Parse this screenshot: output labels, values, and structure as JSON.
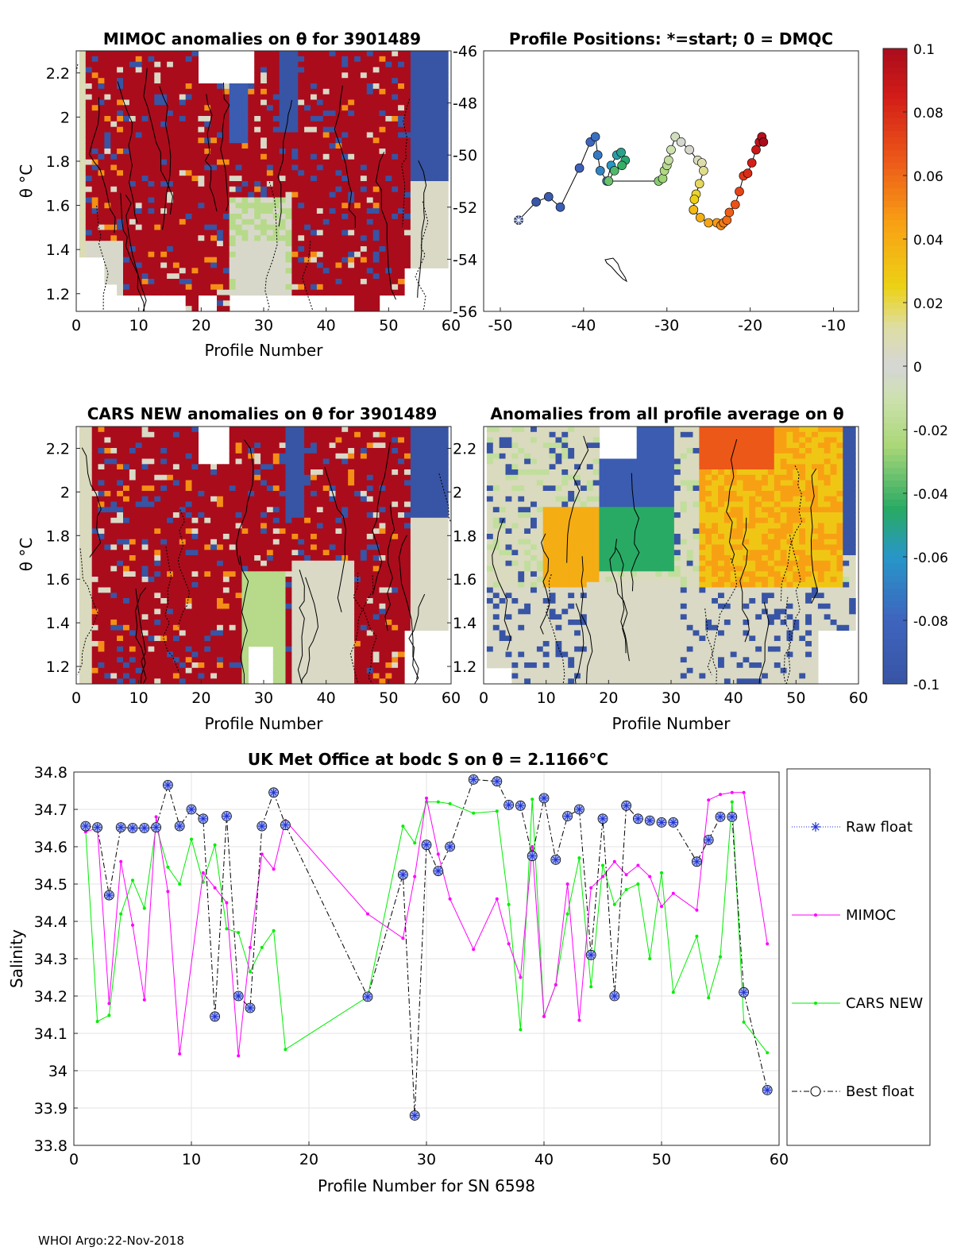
{
  "footer": "WHOI Argo:22-Nov-2018",
  "colors": {
    "raw_float": "#1f2fd6",
    "mimoc": "#ff00ff",
    "cars": "#00ee00",
    "best_float": "#000000",
    "marker_fill": "#9fb0ee"
  },
  "chart_data": [
    {
      "id": "mimoc_anomaly",
      "type": "heatmap",
      "title": "MIMOC anomalies on θ  for 3901489",
      "xlabel": "Profile Number",
      "ylabel": "θ °C",
      "xlim": [
        0,
        60
      ],
      "ylim": [
        1.12,
        2.3
      ],
      "xticks": [
        "0",
        "10",
        "20",
        "30",
        "40",
        "50",
        "60"
      ],
      "yticks": [
        "1.2",
        "1.4",
        "1.6",
        "1.8",
        "2",
        "2.2"
      ],
      "note": "Per-cell anomaly values not individually legible; dominant values approximately +0.1 (red) with ~0 (gray) and negative patches"
    },
    {
      "id": "profile_positions",
      "type": "scatter",
      "title": "Profile Positions: *=start; 0 = DMQC",
      "xlim": [
        -52,
        -7
      ],
      "ylim": [
        -56,
        -46
      ],
      "xticks": [
        "-50",
        "-40",
        "-30",
        "-20",
        "-10"
      ],
      "yticks": [
        "-46",
        "-48",
        "-50",
        "-52",
        "-54",
        "-56"
      ],
      "lon": [
        -47.8,
        -45.7,
        -44.2,
        -42.8,
        -40.5,
        -39.2,
        -38.6,
        -38.3,
        -38.0,
        -37.2,
        -36.7,
        -36.0,
        -35.5,
        -35.0,
        -35.4,
        -36.3,
        -37.0,
        -31.0,
        -30.5,
        -30.3,
        -30.0,
        -29.8,
        -29.5,
        -29.0,
        -28.3,
        -27.3,
        -26.3,
        -25.8,
        -25.6,
        -26.1,
        -26.5,
        -26.7,
        -26.8,
        -26.8,
        -26.0,
        -25.0,
        -24.0,
        -23.5,
        -23.2,
        -22.8,
        -22.5,
        -21.8,
        -21.3,
        -20.8,
        -20.3,
        -19.8,
        -19.3,
        -18.9,
        -18.6,
        -18.4
      ],
      "lat": [
        -52.5,
        -51.8,
        -51.6,
        -52.0,
        -50.5,
        -49.5,
        -49.3,
        -50.0,
        -50.6,
        -51.0,
        -50.4,
        -50.0,
        -49.9,
        -50.2,
        -50.4,
        -50.6,
        -51.0,
        -51.0,
        -50.9,
        -50.6,
        -50.4,
        -50.2,
        -49.8,
        -49.3,
        -49.5,
        -49.8,
        -50.2,
        -50.3,
        -50.6,
        -51.1,
        -51.5,
        -51.7,
        -52.1,
        -52.1,
        -52.4,
        -52.6,
        -52.6,
        -52.7,
        -52.6,
        -52.5,
        -52.2,
        -51.9,
        -51.4,
        -50.8,
        -50.7,
        -50.3,
        -49.8,
        -49.5,
        -49.3,
        -49.5
      ],
      "island_outline": "Small island near lon -36, lat -54.5"
    },
    {
      "id": "cars_anomaly",
      "type": "heatmap",
      "title": "CARS NEW anomalies on θ for 3901489",
      "xlabel": "Profile Number",
      "ylabel": "θ °C",
      "xlim": [
        0,
        60
      ],
      "ylim": [
        1.12,
        2.3
      ],
      "xticks": [
        "0",
        "10",
        "20",
        "30",
        "40",
        "50",
        "60"
      ],
      "yticks": [
        "1.2",
        "1.4",
        "1.6",
        "1.8",
        "2",
        "2.2"
      ]
    },
    {
      "id": "profile_average_anomaly",
      "type": "heatmap",
      "title": "Anomalies from all profile average on θ",
      "xlabel": "Profile Number",
      "xlim": [
        0,
        60
      ],
      "ylim": [
        1.12,
        2.3
      ],
      "xticks": [
        "0",
        "10",
        "20",
        "30",
        "40",
        "50",
        "60"
      ],
      "yticks": [
        "1.2",
        "1.4",
        "1.6",
        "1.8",
        "2",
        "2.2"
      ]
    },
    {
      "id": "colorbar",
      "type": "colorbar",
      "range": [
        -0.1,
        0.1
      ],
      "ticks": [
        "0.1",
        "0.08",
        "0.06",
        "0.04",
        "0.02",
        "0",
        "-0.02",
        "-0.04",
        "-0.06",
        "-0.08",
        "-0.1"
      ]
    },
    {
      "id": "salinity_series",
      "type": "line",
      "title": "UK Met Office at bodc S on θ = 2.1166",
      "title_unit": "°C",
      "xlabel": "Profile Number for SN 6598",
      "ylabel": "Salinity",
      "xlim": [
        0,
        60
      ],
      "ylim": [
        33.8,
        34.8
      ],
      "xticks": [
        "0",
        "10",
        "20",
        "30",
        "40",
        "50",
        "60"
      ],
      "yticks": [
        "34.8",
        "34.7",
        "34.6",
        "34.5",
        "34.4",
        "34.3",
        "34.2",
        "34.1",
        "34",
        "33.9",
        "33.8"
      ],
      "legend": [
        "Raw float",
        "MIMOC",
        "CARS NEW",
        "Best float"
      ],
      "legend_location": "outside-right",
      "series": [
        {
          "name": "Best float",
          "x": [
            1,
            2,
            3,
            4,
            5,
            6,
            7,
            8,
            9,
            10,
            11,
            12,
            13,
            14,
            15,
            16,
            17,
            18,
            25,
            28,
            29,
            30,
            31,
            32,
            34,
            36,
            37,
            38,
            39,
            40,
            41,
            42,
            43,
            44,
            45,
            46,
            47,
            48,
            49,
            50,
            51,
            53,
            54,
            55,
            56,
            57,
            59
          ],
          "y": [
            34.655,
            34.652,
            34.47,
            34.652,
            34.65,
            34.65,
            34.652,
            34.765,
            34.655,
            34.7,
            34.675,
            34.145,
            34.682,
            34.2,
            34.168,
            34.655,
            34.745,
            34.658,
            34.198,
            34.525,
            33.88,
            34.605,
            34.535,
            34.6,
            34.78,
            34.775,
            34.712,
            34.71,
            34.575,
            34.73,
            34.565,
            34.682,
            34.7,
            34.31,
            34.675,
            34.2,
            34.71,
            34.675,
            34.67,
            34.665,
            34.665,
            34.56,
            34.618,
            34.68,
            34.68,
            34.21,
            33.948
          ]
        },
        {
          "name": "MIMOC",
          "x": [
            1,
            2,
            3,
            4,
            5,
            6,
            7,
            8,
            9,
            11,
            12,
            13,
            14,
            15,
            16,
            17,
            18,
            25,
            28,
            29,
            30,
            31,
            32,
            34,
            36,
            37,
            38,
            39,
            40,
            41,
            42,
            43,
            44,
            45,
            46,
            47,
            48,
            49,
            50,
            51,
            53,
            54,
            55,
            56,
            57,
            59
          ],
          "y": [
            34.64,
            34.65,
            34.18,
            34.56,
            34.39,
            34.19,
            34.68,
            34.48,
            34.045,
            34.53,
            34.49,
            34.45,
            34.04,
            34.33,
            34.58,
            34.54,
            34.67,
            34.42,
            34.355,
            34.52,
            34.73,
            34.58,
            34.46,
            34.325,
            34.46,
            34.34,
            34.25,
            34.6,
            34.145,
            34.23,
            34.5,
            34.135,
            34.49,
            34.52,
            34.56,
            34.525,
            34.55,
            34.52,
            34.44,
            34.475,
            34.43,
            34.725,
            34.74,
            34.745,
            34.745,
            34.34
          ]
        },
        {
          "name": "CARS NEW",
          "x": [
            1,
            2,
            3,
            4,
            5,
            6,
            7,
            8,
            9,
            10,
            11,
            12,
            13,
            14,
            15,
            16,
            17,
            18,
            25,
            28,
            29,
            30,
            31,
            32,
            34,
            36,
            37,
            38,
            39,
            40,
            41,
            42,
            43,
            44,
            45,
            46,
            47,
            48,
            49,
            50,
            51,
            53,
            54,
            55,
            56,
            57,
            59
          ],
          "y": [
            34.645,
            34.132,
            34.148,
            34.42,
            34.51,
            34.435,
            34.655,
            34.545,
            34.5,
            34.62,
            34.505,
            34.605,
            34.38,
            34.37,
            34.265,
            34.33,
            34.375,
            34.057,
            34.198,
            34.655,
            34.61,
            34.72,
            34.72,
            34.715,
            34.69,
            34.695,
            34.445,
            34.11,
            34.727,
            34.145,
            34.23,
            34.42,
            34.57,
            34.225,
            34.55,
            34.445,
            34.485,
            34.5,
            34.3,
            34.53,
            34.21,
            34.36,
            34.195,
            34.305,
            34.72,
            34.13,
            34.048
          ]
        }
      ]
    }
  ]
}
